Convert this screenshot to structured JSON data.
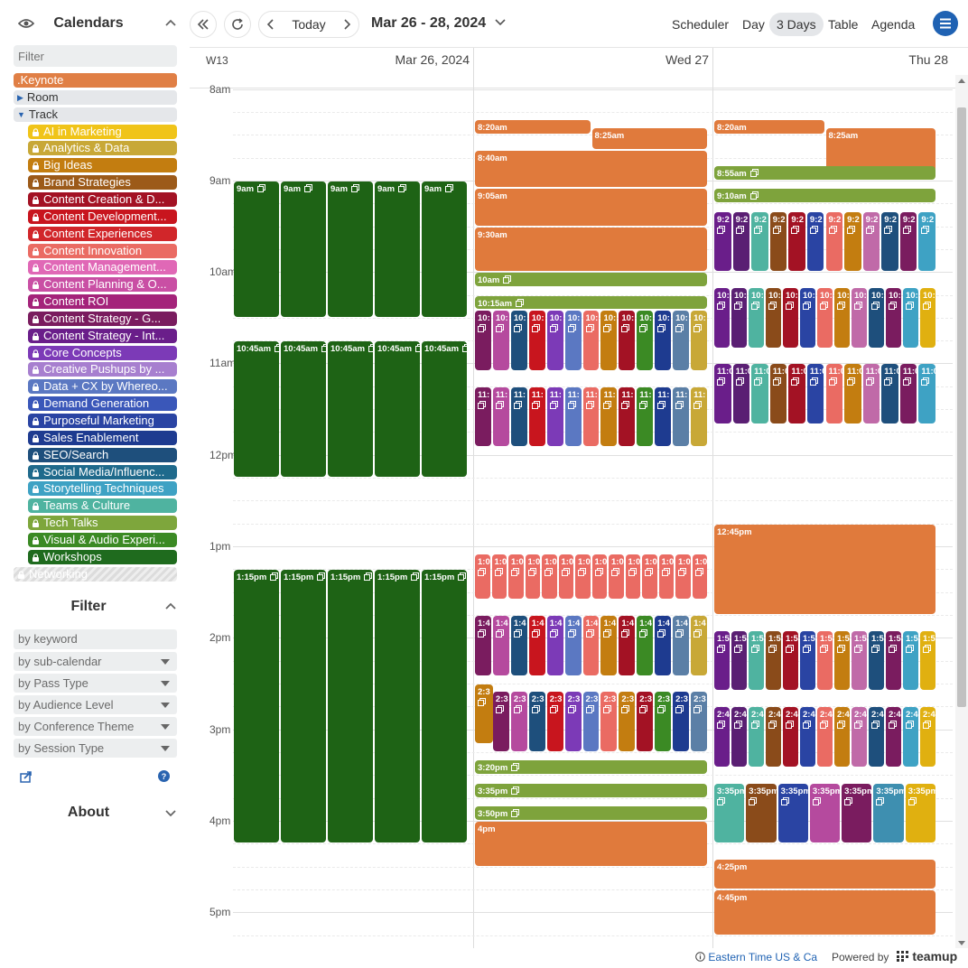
{
  "sidebar": {
    "calendars_title": "Calendars",
    "filter_placeholder": "Filter",
    "calendars": [
      {
        "label": ".Keynote",
        "color": "#e07f45",
        "lock": false,
        "type": "cal"
      },
      {
        "label": "Room",
        "type": "group",
        "expanded": false
      },
      {
        "label": "Track",
        "type": "group",
        "expanded": true
      },
      {
        "label": "AI in Marketing",
        "color": "#f0c419",
        "lock": true,
        "type": "cal",
        "indent": true
      },
      {
        "label": "Analytics & Data",
        "color": "#c8a837",
        "lock": true,
        "type": "cal",
        "indent": true
      },
      {
        "label": "Big Ideas",
        "color": "#c37d10",
        "lock": true,
        "type": "cal",
        "indent": true
      },
      {
        "label": "Brand Strategies",
        "color": "#9c5a19",
        "lock": true,
        "type": "cal",
        "indent": true
      },
      {
        "label": "Content Creation & D...",
        "color": "#a31224",
        "lock": true,
        "type": "cal",
        "indent": true
      },
      {
        "label": "Content Development...",
        "color": "#c8151e",
        "lock": true,
        "type": "cal",
        "indent": true
      },
      {
        "label": "Content Experiences",
        "color": "#d1262a",
        "lock": true,
        "type": "cal",
        "indent": true
      },
      {
        "label": "Content Innovation",
        "color": "#ea6b63",
        "lock": true,
        "type": "cal",
        "indent": true
      },
      {
        "label": "Content Management...",
        "color": "#e068b6",
        "lock": true,
        "type": "cal",
        "indent": true
      },
      {
        "label": "Content Planning & O...",
        "color": "#c94fa4",
        "lock": true,
        "type": "cal",
        "indent": true
      },
      {
        "label": "Content ROI",
        "color": "#a4237a",
        "lock": true,
        "type": "cal",
        "indent": true
      },
      {
        "label": "Content Strategy - G...",
        "color": "#7a1c5f",
        "lock": true,
        "type": "cal",
        "indent": true
      },
      {
        "label": "Content Strategy - Int...",
        "color": "#6a1e8a",
        "lock": true,
        "type": "cal",
        "indent": true
      },
      {
        "label": "Core Concepts",
        "color": "#7c3ab7",
        "lock": true,
        "type": "cal",
        "indent": true
      },
      {
        "label": "Creative Pushups by ...",
        "color": "#a77fcf",
        "lock": true,
        "type": "cal",
        "indent": true
      },
      {
        "label": "Data + CX by Whereo...",
        "color": "#5b78c2",
        "lock": true,
        "type": "cal",
        "indent": true
      },
      {
        "label": "Demand Generation",
        "color": "#3a57b9",
        "lock": true,
        "type": "cal",
        "indent": true
      },
      {
        "label": "Purposeful Marketing",
        "color": "#2a44a3",
        "lock": true,
        "type": "cal",
        "indent": true
      },
      {
        "label": "Sales Enablement",
        "color": "#1e3b90",
        "lock": true,
        "type": "cal",
        "indent": true
      },
      {
        "label": "SEO/Search",
        "color": "#1e4f7c",
        "lock": true,
        "type": "cal",
        "indent": true
      },
      {
        "label": "Social Media/Influenc...",
        "color": "#1f6a8c",
        "lock": true,
        "type": "cal",
        "indent": true
      },
      {
        "label": "Storytelling Techniques",
        "color": "#3ea2c4",
        "lock": true,
        "type": "cal",
        "indent": true
      },
      {
        "label": "Teams & Culture",
        "color": "#4fb3a0",
        "lock": true,
        "type": "cal",
        "indent": true
      },
      {
        "label": "Tech Talks",
        "color": "#7ea63c",
        "lock": true,
        "type": "cal",
        "indent": true
      },
      {
        "label": "Visual & Audio Experi...",
        "color": "#3b8a24",
        "lock": true,
        "type": "cal",
        "indent": true
      },
      {
        "label": "Workshops",
        "color": "#1f6b1e",
        "lock": true,
        "type": "cal",
        "indent": true
      },
      {
        "label": "Networking",
        "color": "#cfcfcf",
        "lock": true,
        "type": "cal",
        "faded": true
      }
    ],
    "filter_title": "Filter",
    "keyword_placeholder": "by keyword",
    "filters": [
      "by sub-calendar",
      "by Pass Type",
      "by Audience Level",
      "by Conference Theme",
      "by Session Type"
    ],
    "about_title": "About"
  },
  "toolbar": {
    "today_label": "Today",
    "date_range": "Mar 26 - 28, 2024",
    "views": [
      {
        "label": "Scheduler",
        "active": false
      },
      {
        "label": "Day",
        "active": false
      },
      {
        "label": "3 Days",
        "active": true
      },
      {
        "label": "Table",
        "active": false
      },
      {
        "label": "Agenda",
        "active": false
      }
    ]
  },
  "calendar": {
    "week_label": "W13",
    "days": [
      "Mar 26, 2024",
      "Wed 27",
      "Thu 28"
    ],
    "hour_labels": [
      "8am",
      "9am",
      "10am",
      "11am",
      "12pm",
      "1pm",
      "2pm",
      "3pm",
      "4pm",
      "5pm"
    ],
    "start_hour": 7.55,
    "events": [
      {
        "day": 0,
        "start": 9,
        "end": 10.5,
        "label": "9am",
        "color": "#1e6315",
        "lane": 0,
        "lanes": 5
      },
      {
        "day": 0,
        "start": 9,
        "end": 10.5,
        "label": "9am",
        "color": "#1e6315",
        "lane": 1,
        "lanes": 5
      },
      {
        "day": 0,
        "start": 9,
        "end": 10.5,
        "label": "9am",
        "color": "#1e6315",
        "lane": 2,
        "lanes": 5
      },
      {
        "day": 0,
        "start": 9,
        "end": 10.5,
        "label": "9am",
        "color": "#1e6315",
        "lane": 3,
        "lanes": 5
      },
      {
        "day": 0,
        "start": 9,
        "end": 10.5,
        "label": "9am",
        "color": "#1e6315",
        "lane": 4,
        "lanes": 5
      },
      {
        "day": 0,
        "start": 10.75,
        "end": 12.25,
        "label": "10:45am",
        "color": "#1e6315",
        "lane": 0,
        "lanes": 5
      },
      {
        "day": 0,
        "start": 10.75,
        "end": 12.25,
        "label": "10:45am",
        "color": "#1e6315",
        "lane": 1,
        "lanes": 5
      },
      {
        "day": 0,
        "start": 10.75,
        "end": 12.25,
        "label": "10:45am",
        "color": "#1e6315",
        "lane": 2,
        "lanes": 5
      },
      {
        "day": 0,
        "start": 10.75,
        "end": 12.25,
        "label": "10:45am",
        "color": "#1e6315",
        "lane": 3,
        "lanes": 5
      },
      {
        "day": 0,
        "start": 10.75,
        "end": 12.25,
        "label": "10:45am",
        "color": "#1e6315",
        "lane": 4,
        "lanes": 5
      },
      {
        "day": 0,
        "start": 13.25,
        "end": 16.25,
        "label": "1:15pm",
        "color": "#1e6315",
        "lane": 0,
        "lanes": 5
      },
      {
        "day": 0,
        "start": 13.25,
        "end": 16.25,
        "label": "1:15pm",
        "color": "#1e6315",
        "lane": 1,
        "lanes": 5
      },
      {
        "day": 0,
        "start": 13.25,
        "end": 16.25,
        "label": "1:15pm",
        "color": "#1e6315",
        "lane": 2,
        "lanes": 5
      },
      {
        "day": 0,
        "start": 13.25,
        "end": 16.25,
        "label": "1:15pm",
        "color": "#1e6315",
        "lane": 3,
        "lanes": 5
      },
      {
        "day": 0,
        "start": 13.25,
        "end": 16.25,
        "label": "1:15pm",
        "color": "#1e6315",
        "lane": 4,
        "lanes": 5
      },
      {
        "day": 1,
        "start": 8.333,
        "end": 8.5,
        "label": "8:20am",
        "color": "#e07a3c",
        "lane": 0,
        "lanes": 2
      },
      {
        "day": 1,
        "start": 8.416,
        "end": 8.666,
        "label": "8:25am",
        "color": "#e07a3c",
        "lane": 1,
        "lanes": 2
      },
      {
        "day": 1,
        "start": 8.666,
        "end": 9.083,
        "label": "8:40am",
        "color": "#e07a3c",
        "lane": 0,
        "lanes": 1
      },
      {
        "day": 1,
        "start": 9.083,
        "end": 9.5,
        "label": "9:05am",
        "color": "#e07a3c",
        "lane": 0,
        "lanes": 1
      },
      {
        "day": 1,
        "start": 9.5,
        "end": 10,
        "label": "9:30am",
        "color": "#e07a3c",
        "lane": 0,
        "lanes": 1
      },
      {
        "day": 1,
        "start": 10,
        "end": 10.166,
        "label": "10am",
        "color": "#7ea33c",
        "lane": 0,
        "lanes": 1,
        "icon": true
      },
      {
        "day": 1,
        "start": 10.25,
        "end": 10.416,
        "label": "10:15am",
        "color": "#7ea33c",
        "lane": 0,
        "lanes": 1,
        "icon": true
      },
      {
        "day": 1,
        "row": "1030",
        "start": 10.416,
        "end": 11.083,
        "label": "10:",
        "lanes": 13
      },
      {
        "day": 1,
        "row": "1115",
        "start": 11.25,
        "end": 11.916,
        "label": "11:",
        "lanes": 13
      },
      {
        "day": 1,
        "row": "100",
        "start": 13.083,
        "end": 13.583,
        "label": "1:0",
        "lanes": 14,
        "palette": "red"
      },
      {
        "day": 1,
        "row": "140",
        "start": 13.75,
        "end": 14.416,
        "label": "1:4",
        "lanes": 13
      },
      {
        "day": 1,
        "start": 14.5,
        "end": 15.166,
        "label": "2:3",
        "color": "#c37d10",
        "lane": 0,
        "lanes": 1,
        "narrow": true
      },
      {
        "day": 1,
        "row": "230",
        "start": 14.583,
        "end": 15.25,
        "label": "2:3",
        "lanes": 12,
        "offset": 1
      },
      {
        "day": 1,
        "start": 15.333,
        "end": 15.5,
        "label": "3:20pm",
        "color": "#7ea33c",
        "lane": 0,
        "lanes": 1,
        "icon": true
      },
      {
        "day": 1,
        "start": 15.583,
        "end": 15.75,
        "label": "3:35pm",
        "color": "#7ea33c",
        "lane": 0,
        "lanes": 1,
        "icon": true
      },
      {
        "day": 1,
        "start": 15.833,
        "end": 16,
        "label": "3:50pm",
        "color": "#7ea33c",
        "lane": 0,
        "lanes": 1,
        "icon": true
      },
      {
        "day": 1,
        "start": 16,
        "end": 16.5,
        "label": "4pm",
        "color": "#e07a3c",
        "lane": 0,
        "lanes": 1
      },
      {
        "day": 2,
        "start": 8.333,
        "end": 8.5,
        "label": "8:20am",
        "color": "#e07a3c",
        "lane": 0,
        "lanes": 2
      },
      {
        "day": 2,
        "start": 8.416,
        "end": 8.916,
        "label": "8:25am",
        "color": "#e07a3c",
        "lane": 1,
        "lanes": 2
      },
      {
        "day": 2,
        "start": 8.833,
        "end": 9,
        "label": "8:55am",
        "color": "#7ea33c",
        "lane": 0,
        "lanes": 1,
        "icon": true
      },
      {
        "day": 2,
        "start": 9.083,
        "end": 9.25,
        "label": "9:10am",
        "color": "#7ea33c",
        "lane": 0,
        "lanes": 1,
        "icon": true
      },
      {
        "day": 2,
        "row": "920",
        "start": 9.333,
        "end": 10,
        "label": "9:2",
        "lanes": 12,
        "palette": "thu"
      },
      {
        "day": 2,
        "row": "1010",
        "start": 10.166,
        "end": 10.833,
        "label": "10:",
        "lanes": 13,
        "palette": "thu"
      },
      {
        "day": 2,
        "row": "1100",
        "start": 11,
        "end": 11.666,
        "label": "11:0",
        "lanes": 12,
        "palette": "thu"
      },
      {
        "day": 2,
        "start": 12.75,
        "end": 13.75,
        "label": "12:45pm",
        "color": "#e07a3c",
        "lane": 0,
        "lanes": 1
      },
      {
        "day": 2,
        "row": "150",
        "start": 13.916,
        "end": 14.583,
        "label": "1:5",
        "lanes": 13,
        "palette": "thu"
      },
      {
        "day": 2,
        "row": "240",
        "start": 14.75,
        "end": 15.416,
        "label": "2:4",
        "lanes": 13,
        "palette": "thu"
      },
      {
        "day": 2,
        "row": "335",
        "start": 15.583,
        "end": 16.25,
        "label": "3:35pm",
        "lanes": 7,
        "palette": "thu2"
      },
      {
        "day": 2,
        "start": 16.416,
        "end": 16.75,
        "label": "4:25pm",
        "color": "#e07a3c",
        "lane": 0,
        "lanes": 1
      },
      {
        "day": 2,
        "start": 16.75,
        "end": 17.25,
        "label": "4:45pm",
        "color": "#e07a3c",
        "lane": 0,
        "lanes": 1
      }
    ],
    "palettes": {
      "default": [
        "#7a1c5f",
        "#b54a9e",
        "#1e4f7c",
        "#c8151e",
        "#7c3ab7",
        "#5b78c2",
        "#ea6b63",
        "#c37d10",
        "#a31224",
        "#3b8a24",
        "#1e3b90",
        "#5b7fa6",
        "#c8a837"
      ],
      "red": [
        "#ea6b63"
      ],
      "thu": [
        "#6a1e8a",
        "#5a1f73",
        "#4fb3a0",
        "#8a4b1a",
        "#a31224",
        "#2a44a3",
        "#ea6b63",
        "#c37d10",
        "#c06aa8",
        "#1e4f7c",
        "#7a1c5f",
        "#3ea2c4",
        "#e0b010"
      ],
      "thu2": [
        "#4fb3a0",
        "#8a4b1a",
        "#2a44a3",
        "#b54a9e",
        "#7a1c5f",
        "#3e8fb0",
        "#e0b010"
      ]
    }
  },
  "footer": {
    "timezone": "Eastern Time US & Ca",
    "powered": "Powered by",
    "brand": "teamup"
  },
  "colors": {
    "accent": "#1f62b3"
  }
}
